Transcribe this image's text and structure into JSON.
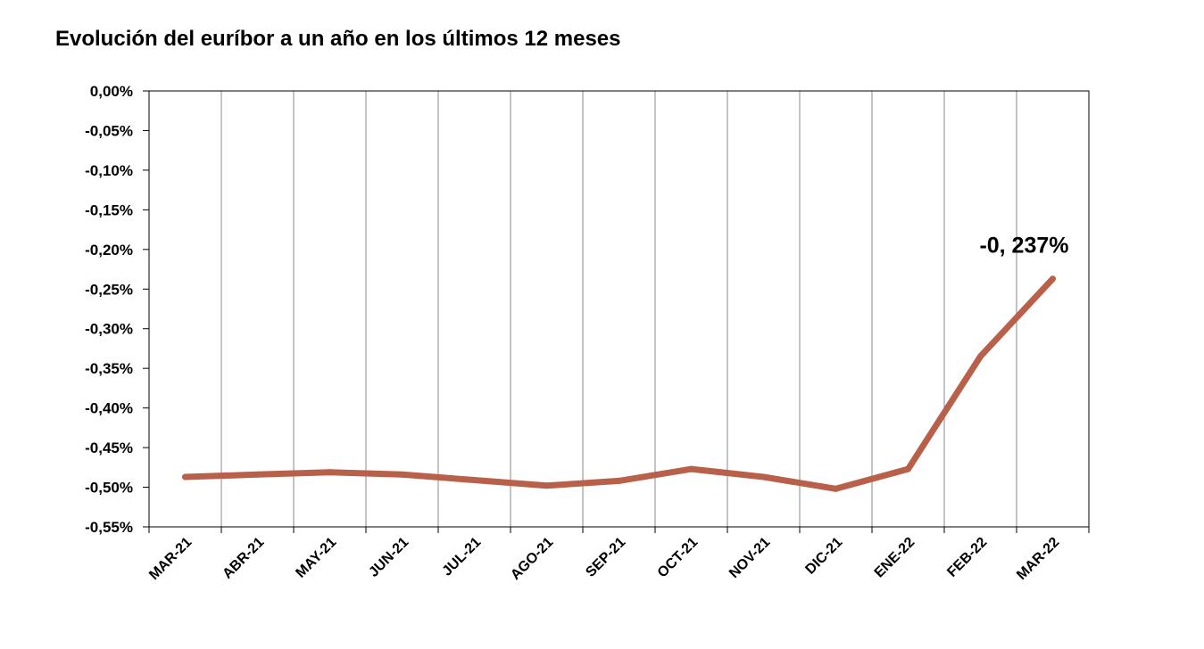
{
  "chart_data": {
    "type": "line",
    "title": "Evolución del euríbor a un año en los últimos 12 meses",
    "xlabel": "",
    "ylabel": "",
    "categories": [
      "MAR-21",
      "ABR-21",
      "MAY-21",
      "JUN-21",
      "JUL-21",
      "AGO-21",
      "SEP-21",
      "OCT-21",
      "NOV-21",
      "DIC-21",
      "ENE-22",
      "FEB-22",
      "MAR-22"
    ],
    "series": [
      {
        "values": [
          -0.487,
          -0.484,
          -0.481,
          -0.484,
          -0.491,
          -0.498,
          -0.492,
          -0.477,
          -0.487,
          -0.502,
          -0.477,
          -0.335,
          -0.237
        ]
      }
    ],
    "ylim": [
      -0.55,
      0.0
    ],
    "yticks": [
      0.0,
      -0.05,
      -0.1,
      -0.15,
      -0.2,
      -0.25,
      -0.3,
      -0.35,
      -0.4,
      -0.45,
      -0.5,
      -0.55
    ],
    "ytick_labels": [
      "0,00%",
      "-0,05%",
      "-0,10%",
      "-0,15%",
      "-0,20%",
      "-0,25%",
      "-0,30%",
      "-0,35%",
      "-0,40%",
      "-0,45%",
      "-0,50%",
      "-0,55%"
    ],
    "grid": "vertical",
    "legend": "none",
    "annotation": {
      "text": "-0, 237%",
      "category": "MAR-22"
    },
    "line_color": "#b8604a",
    "grid_color": "#8a8a8a"
  }
}
